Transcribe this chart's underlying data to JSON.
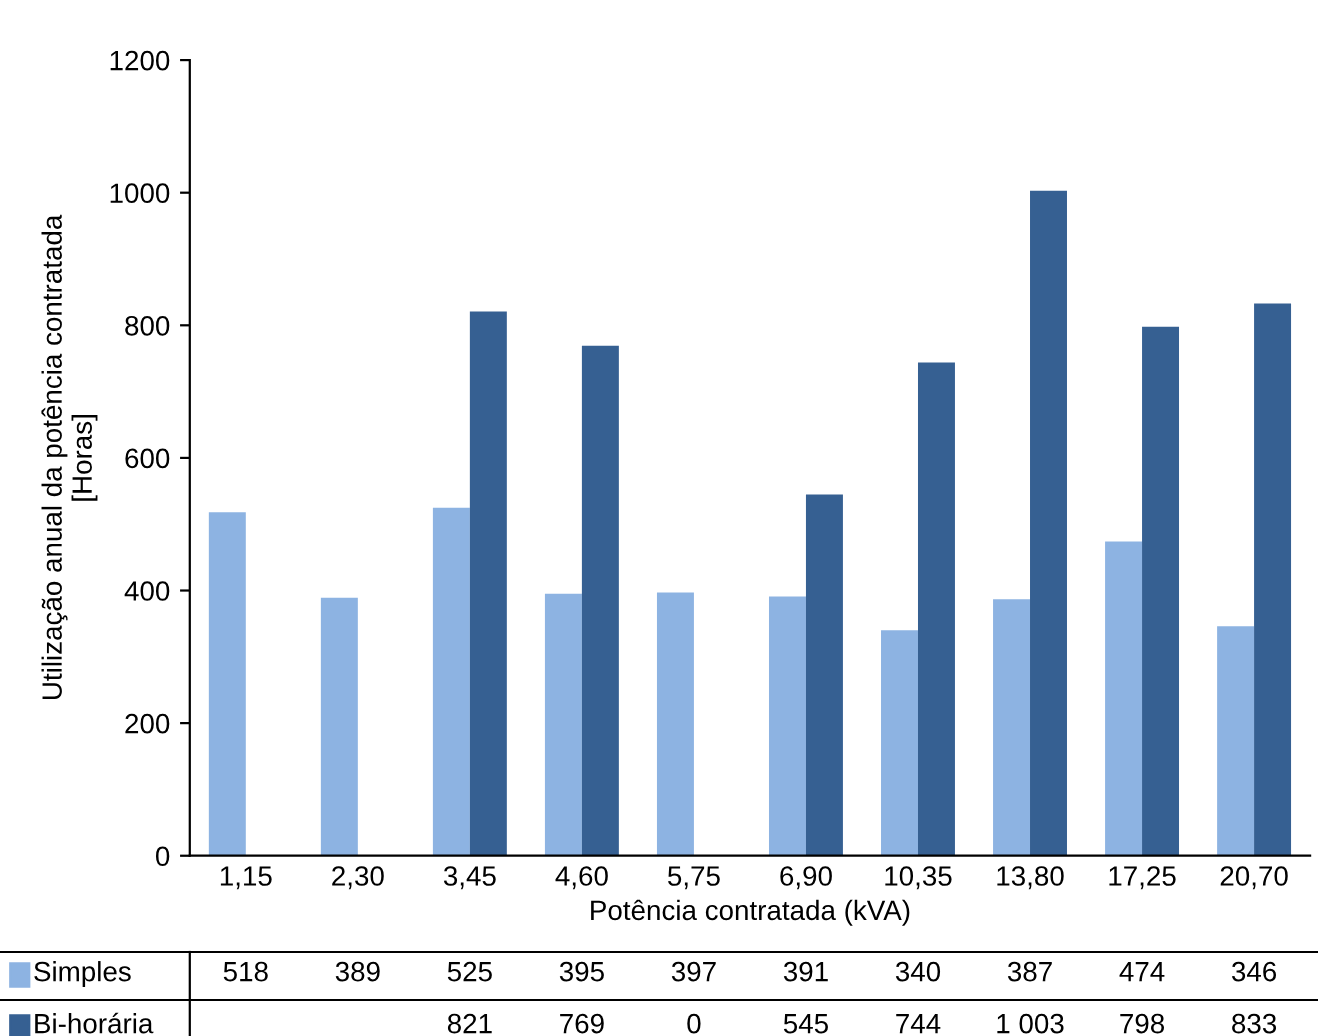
{
  "chart_data": {
    "type": "bar",
    "xlabel": "Potência contratada (kVA)",
    "ylabel": "Utilização anual da potência contratada\n[Horas]",
    "categories": [
      "1,15",
      "2,30",
      "3,45",
      "4,60",
      "5,75",
      "6,90",
      "10,35",
      "13,80",
      "17,25",
      "20,70"
    ],
    "series": [
      {
        "name": "Simples",
        "color": "#8db3e2",
        "values": [
          518,
          389,
          525,
          395,
          397,
          391,
          340,
          387,
          474,
          346
        ],
        "value_labels": [
          "518",
          "389",
          "525",
          "395",
          "397",
          "391",
          "340",
          "387",
          "474",
          "346"
        ]
      },
      {
        "name": "Bi-horária",
        "color": "#366092",
        "values": [
          null,
          null,
          821,
          769,
          0,
          545,
          744,
          1003,
          798,
          833
        ],
        "value_labels": [
          null,
          null,
          "821",
          "769",
          "0",
          "545",
          "744",
          "1 003",
          "798",
          "833"
        ]
      }
    ],
    "ylim": [
      0,
      1200
    ],
    "yticks": [
      0,
      200,
      400,
      600,
      800,
      1000,
      1200
    ],
    "grid": false,
    "legend": "bottom"
  }
}
